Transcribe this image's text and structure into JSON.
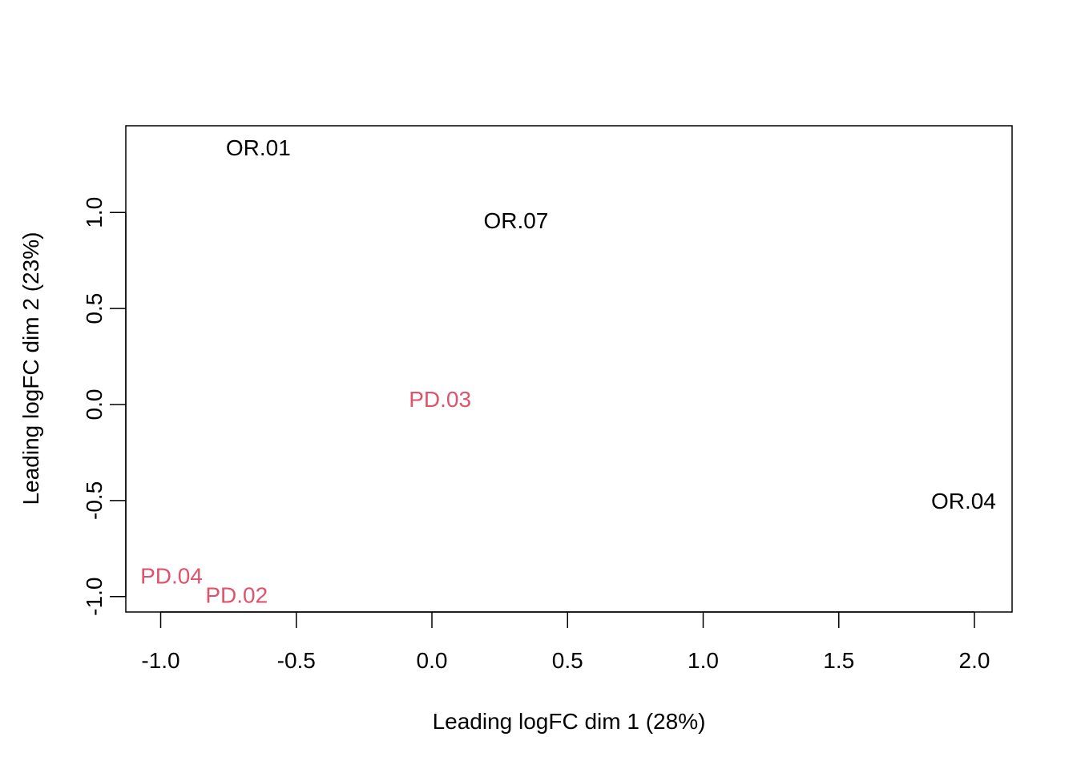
{
  "chart_data": {
    "type": "scatter",
    "title": "",
    "xlabel": "Leading logFC dim 1 (28%)",
    "ylabel": "Leading logFC dim 2 (23%)",
    "xlim": [
      -1.13,
      2.14
    ],
    "ylim": [
      -1.08,
      1.45
    ],
    "x_ticks": [
      -1.0,
      -0.5,
      0.0,
      0.5,
      1.0,
      1.5,
      2.0
    ],
    "x_tick_labels": [
      "-1.0",
      "-0.5",
      "0.0",
      "0.5",
      "1.0",
      "1.5",
      "2.0"
    ],
    "y_ticks": [
      -1.0,
      -0.5,
      0.0,
      0.5,
      1.0
    ],
    "y_tick_labels": [
      "-1.0",
      "-0.5",
      "0.0",
      "0.5",
      "1.0"
    ],
    "grid": false,
    "legend": "none",
    "points": [
      {
        "label": "OR.01",
        "x": -0.64,
        "y": 1.34,
        "color": "#000000"
      },
      {
        "label": "OR.07",
        "x": 0.31,
        "y": 0.96,
        "color": "#000000"
      },
      {
        "label": "PD.03",
        "x": 0.03,
        "y": 0.03,
        "color": "#DF536B"
      },
      {
        "label": "OR.04",
        "x": 1.96,
        "y": -0.5,
        "color": "#000000"
      },
      {
        "label": "PD.04",
        "x": -0.96,
        "y": -0.89,
        "color": "#DF536B"
      },
      {
        "label": "PD.02",
        "x": -0.72,
        "y": -0.99,
        "color": "#DF536B"
      }
    ]
  }
}
